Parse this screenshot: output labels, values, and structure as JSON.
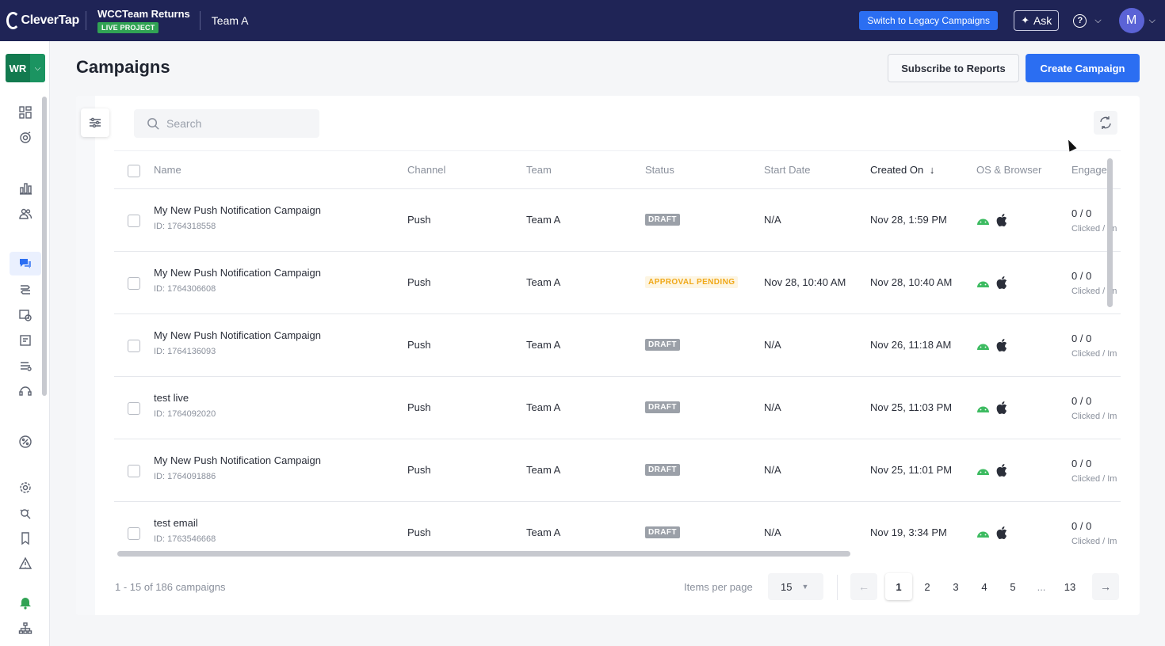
{
  "topbar": {
    "logo_text": "CleverTap",
    "project_name": "WCCTeam Returns",
    "project_badge": "LIVE PROJECT",
    "team": "Team A",
    "legacy_button": "Switch to Legacy Campaigns",
    "ask_button": "Ask",
    "avatar_initial": "M"
  },
  "sidebar": {
    "workspace": "WR",
    "icons": [
      "dashboard-icon",
      "segment-icon",
      "analytics-icon",
      "users-icon",
      "campaigns-icon",
      "journeys-icon",
      "schedule-icon",
      "content-icon",
      "catalog-icon",
      "support-icon",
      "offers-icon",
      "settings-icon",
      "debug-icon",
      "bookmark-icon",
      "alert-icon",
      "notification-bell-icon",
      "hierarchy-icon"
    ]
  },
  "page": {
    "title": "Campaigns",
    "subscribe_button": "Subscribe to Reports",
    "create_button": "Create Campaign"
  },
  "search": {
    "placeholder": "Search"
  },
  "table": {
    "columns": {
      "name": "Name",
      "channel": "Channel",
      "team": "Team",
      "status": "Status",
      "start_date": "Start Date",
      "created_on": "Created On",
      "os_browser": "OS & Browser",
      "engaged": "Engaged"
    },
    "sort_indicator": "↓",
    "rows": [
      {
        "name": "My New Push Notification Campaign",
        "id": "ID: 1764318558",
        "channel": "Push",
        "team": "Team A",
        "status": "DRAFT",
        "start_date": "N/A",
        "created_on": "Nov 28, 1:59 PM",
        "engaged": "0 / 0",
        "engaged_sub": "Clicked / Im"
      },
      {
        "name": "My New Push Notification Campaign",
        "id": "ID: 1764306608",
        "channel": "Push",
        "team": "Team A",
        "status": "APPROVAL PENDING",
        "start_date": "Nov 28, 10:40 AM",
        "created_on": "Nov 28, 10:40 AM",
        "engaged": "0 / 0",
        "engaged_sub": "Clicked / Im"
      },
      {
        "name": "My New Push Notification Campaign",
        "id": "ID: 1764136093",
        "channel": "Push",
        "team": "Team A",
        "status": "DRAFT",
        "start_date": "N/A",
        "created_on": "Nov 26, 11:18 AM",
        "engaged": "0 / 0",
        "engaged_sub": "Clicked / Im"
      },
      {
        "name": "test live",
        "id": "ID: 1764092020",
        "channel": "Push",
        "team": "Team A",
        "status": "DRAFT",
        "start_date": "N/A",
        "created_on": "Nov 25, 11:03 PM",
        "engaged": "0 / 0",
        "engaged_sub": "Clicked / Im"
      },
      {
        "name": "My New Push Notification Campaign",
        "id": "ID: 1764091886",
        "channel": "Push",
        "team": "Team A",
        "status": "DRAFT",
        "start_date": "N/A",
        "created_on": "Nov 25, 11:01 PM",
        "engaged": "0 / 0",
        "engaged_sub": "Clicked / Im"
      },
      {
        "name": "test email",
        "id": "ID: 1763546668",
        "channel": "Push",
        "team": "Team A",
        "status": "DRAFT",
        "start_date": "N/A",
        "created_on": "Nov 19, 3:34 PM",
        "engaged": "0 / 0",
        "engaged_sub": "Clicked / Im"
      }
    ]
  },
  "footer": {
    "range_text": "1 - 15 of 186 campaigns",
    "items_per_page_label": "Items per page",
    "items_per_page_value": "15",
    "pages": [
      "1",
      "2",
      "3",
      "4",
      "5",
      "...",
      "13"
    ],
    "current_page": "1",
    "prev_arrow": "←",
    "next_arrow": "→"
  },
  "colors": {
    "topbar_bg": "#1f2456",
    "primary": "#2b6ef2",
    "live_badge": "#31a354",
    "workspace": "#127a4f",
    "draft_badge": "#9ba0a8",
    "pending_text": "#f0a818",
    "android_green": "#3dbb61"
  }
}
